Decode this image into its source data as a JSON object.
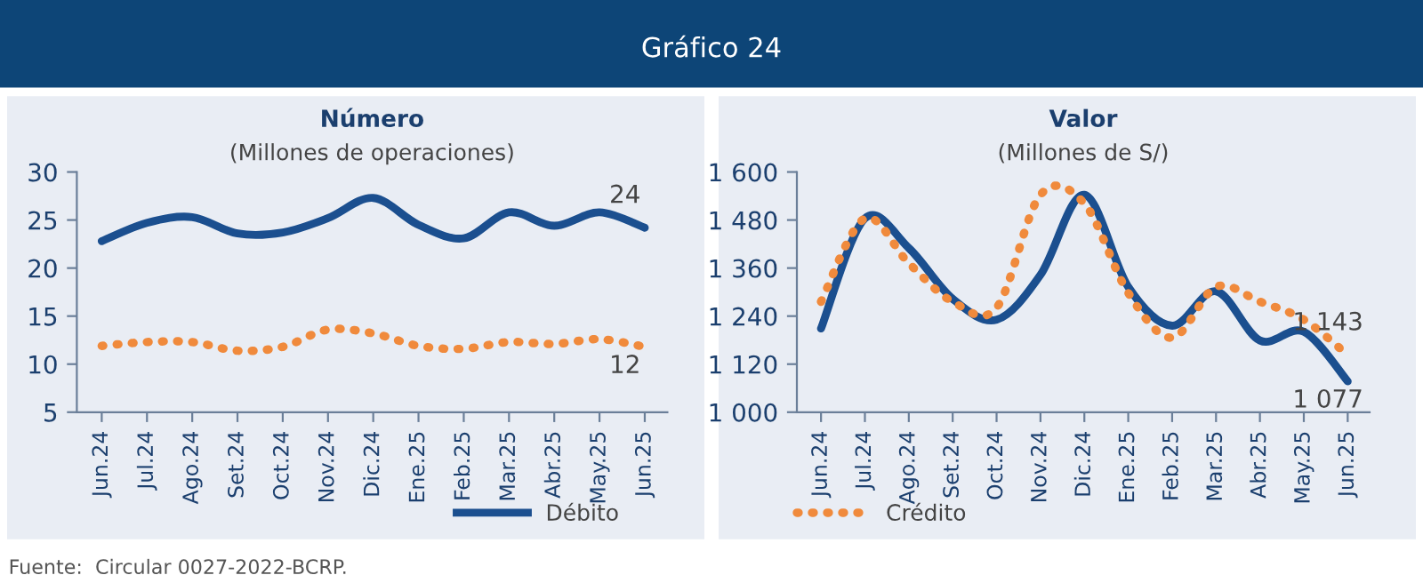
{
  "chart_data": [
    {
      "type": "line",
      "title": "Número",
      "subtitle": "(Millones de operaciones)",
      "categories": [
        "Jun.24",
        "Jul.24",
        "Ago.24",
        "Set.24",
        "Oct.24",
        "Nov.24",
        "Dic.24",
        "Ene.25",
        "Feb.25",
        "Mar.25",
        "Abr.25",
        "May.25",
        "Jun.25"
      ],
      "series": [
        {
          "name": "Débito",
          "color": "#1b4f8f",
          "line_style": "solid",
          "values": [
            22.8,
            24.7,
            25.3,
            23.6,
            23.7,
            25.2,
            27.3,
            24.5,
            23.1,
            25.8,
            24.4,
            25.8,
            24.2
          ],
          "value_labels": [
            null,
            null,
            null,
            null,
            null,
            null,
            null,
            null,
            null,
            null,
            null,
            null,
            "24"
          ]
        },
        {
          "name": "Crédito",
          "color": "#f08a3c",
          "line_style": "dotted",
          "values": [
            11.9,
            12.3,
            12.3,
            11.4,
            11.8,
            13.6,
            13.2,
            11.9,
            11.6,
            12.3,
            12.1,
            12.6,
            11.8
          ],
          "value_labels": [
            null,
            null,
            null,
            null,
            null,
            null,
            null,
            null,
            null,
            null,
            null,
            null,
            "12"
          ]
        }
      ],
      "ylim": [
        5,
        30
      ],
      "yticks": [
        5,
        10,
        15,
        20,
        25,
        30
      ],
      "grid": false,
      "legend": "bottom",
      "annotations": [
        "Gráfico 24",
        "Fuente:  Circular 0027-2022-BCRP."
      ]
    },
    {
      "type": "line",
      "title": "Valor",
      "subtitle": "(Millones de S/)",
      "categories": [
        "Jun.24",
        "Jul.24",
        "Ago.24",
        "Set.24",
        "Oct.24",
        "Nov.24",
        "Dic.24",
        "Ene.25",
        "Feb.25",
        "Mar.25",
        "Abr.25",
        "May.25",
        "Jun.25"
      ],
      "series": [
        {
          "color": "#1b4f8f",
          "line_style": "solid",
          "values": [
            1209,
            1484,
            1410,
            1283,
            1231,
            1343,
            1543,
            1313,
            1216,
            1302,
            1179,
            1201,
            1077
          ],
          "value_labels": [
            null,
            null,
            null,
            null,
            null,
            null,
            null,
            null,
            null,
            null,
            null,
            null,
            "1 077"
          ]
        },
        {
          "color": "#f08a3c",
          "line_style": "dotted",
          "values": [
            1276,
            1484,
            1372,
            1276,
            1261,
            1543,
            1521,
            1298,
            1186,
            1313,
            1276,
            1231,
            1143
          ],
          "value_labels": [
            null,
            null,
            null,
            null,
            null,
            null,
            null,
            null,
            null,
            null,
            null,
            null,
            "1 143"
          ]
        }
      ],
      "ylim": [
        1000,
        1600
      ],
      "yticks": [
        {
          "value": 1000,
          "label": "1 000"
        },
        {
          "value": 1120,
          "label": "1 120"
        },
        {
          "value": 1240,
          "label": "1 240"
        },
        {
          "value": 1360,
          "label": "1 360"
        },
        {
          "value": 1480,
          "label": "1 480"
        },
        {
          "value": 1600,
          "label": "1 600"
        }
      ],
      "grid": false,
      "legend": false
    }
  ]
}
